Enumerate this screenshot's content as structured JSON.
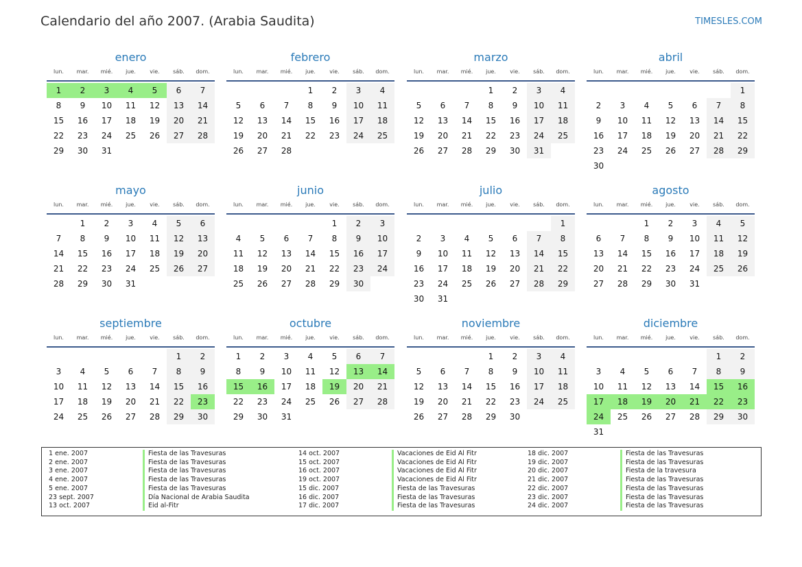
{
  "header": {
    "title": "Calendario del año 2007. (Arabia Saudita)",
    "brand": "TIMESLES.COM"
  },
  "year": 2007,
  "weekdays": [
    "lun.",
    "mar.",
    "mié.",
    "jue.",
    "vie.",
    "sáb.",
    "dom."
  ],
  "months": [
    "enero",
    "febrero",
    "marzo",
    "abril",
    "mayo",
    "junio",
    "julio",
    "agosto",
    "septiembre",
    "octubre",
    "noviembre",
    "diciembre"
  ],
  "holiday_color": "#99ee88",
  "weekend_color": "#f2f2f2",
  "holiday_days": {
    "1": [
      1,
      2,
      3,
      4,
      5
    ],
    "9": [
      23
    ],
    "10": [
      13,
      14,
      15,
      16,
      19
    ],
    "12": [
      15,
      16,
      17,
      18,
      19,
      20,
      21,
      22,
      23,
      24
    ]
  },
  "holidays": [
    {
      "date": "1 ene. 2007",
      "name": "Fiesta de las Travesuras"
    },
    {
      "date": "2 ene. 2007",
      "name": "Fiesta de las Travesuras"
    },
    {
      "date": "3 ene. 2007",
      "name": "Fiesta de las Travesuras"
    },
    {
      "date": "4 ene. 2007",
      "name": "Fiesta de las Travesuras"
    },
    {
      "date": "5 ene. 2007",
      "name": "Fiesta de las Travesuras"
    },
    {
      "date": "23 sept. 2007",
      "name": "Día Nacional de Arabia Saudita"
    },
    {
      "date": "13 oct. 2007",
      "name": "Eid al-Fitr"
    },
    {
      "date": "14 oct. 2007",
      "name": "Vacaciones de Eid Al Fitr"
    },
    {
      "date": "15 oct. 2007",
      "name": "Vacaciones de Eid Al Fitr"
    },
    {
      "date": "16 oct. 2007",
      "name": "Vacaciones de Eid Al Fitr"
    },
    {
      "date": "19 oct. 2007",
      "name": "Vacaciones de Eid Al Fitr"
    },
    {
      "date": "15 dic. 2007",
      "name": "Fiesta de las Travesuras"
    },
    {
      "date": "16 dic. 2007",
      "name": "Fiesta de las Travesuras"
    },
    {
      "date": "17 dic. 2007",
      "name": "Fiesta de las Travesuras"
    },
    {
      "date": "18 dic. 2007",
      "name": "Fiesta de las Travesuras"
    },
    {
      "date": "19 dic. 2007",
      "name": "Fiesta de las Travesuras"
    },
    {
      "date": "20 dic. 2007",
      "name": "Fiesta de la travesura"
    },
    {
      "date": "21 dic. 2007",
      "name": "Fiesta de las Travesuras"
    },
    {
      "date": "22 dic. 2007",
      "name": "Fiesta de las Travesuras"
    },
    {
      "date": "23 dic. 2007",
      "name": "Fiesta de las Travesuras"
    },
    {
      "date": "24 dic. 2007",
      "name": "Fiesta de las Travesuras"
    }
  ]
}
